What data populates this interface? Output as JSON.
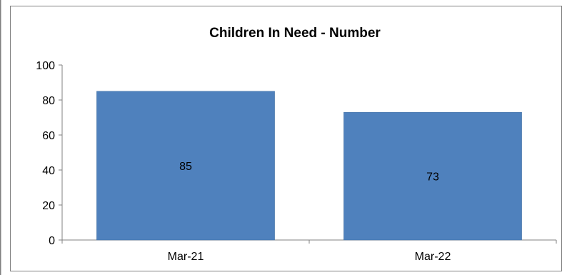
{
  "colors": {
    "bar": "#4F81BD",
    "bar_edge": "#3A6A9E",
    "axis": "#808080",
    "frame": "#808080",
    "text": "#000000"
  },
  "chart_data": {
    "type": "bar",
    "title": "Children In Need - Number",
    "xlabel": "",
    "ylabel": "",
    "categories": [
      "Mar-21",
      "Mar-22"
    ],
    "values": [
      85,
      73
    ],
    "data_labels": [
      "85",
      "73"
    ],
    "ylim": [
      0,
      100
    ],
    "yticks": [
      0,
      20,
      40,
      60,
      80,
      100
    ],
    "grid": false,
    "legend": "none"
  }
}
